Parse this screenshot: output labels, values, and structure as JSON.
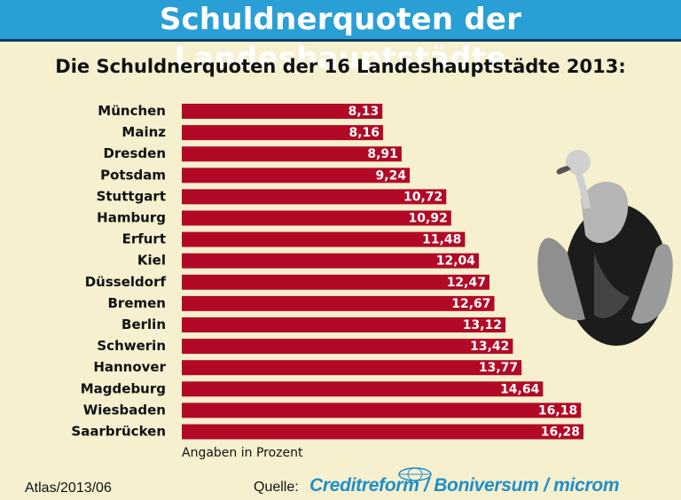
{
  "header": {
    "title": "Schuldnerquoten der Landeshauptstädte"
  },
  "footer": {
    "atlas": "Atlas/2013/06",
    "source_label": "Quelle:",
    "source_brand": "Creditreform / Boniversum / microm"
  },
  "colors": {
    "header_bg": "#2a9fd6",
    "bar": "#b20a26",
    "background": "#f6f0cf",
    "brand": "#1f8fc8"
  },
  "illustration": {
    "name": "vulture-icon"
  },
  "chart_data": {
    "type": "bar",
    "orientation": "horizontal",
    "title": "Die Schuldnerquoten der 16 Landeshauptstädte 2013:",
    "unit_note": "Angaben in Prozent",
    "categories": [
      "München",
      "Mainz",
      "Dresden",
      "Potsdam",
      "Stuttgart",
      "Hamburg",
      "Erfurt",
      "Kiel",
      "Düsseldorf",
      "Bremen",
      "Berlin",
      "Schwerin",
      "Hannover",
      "Magdeburg",
      "Wiesbaden",
      "Saarbrücken"
    ],
    "values": [
      8.13,
      8.16,
      8.91,
      9.24,
      10.72,
      10.92,
      11.48,
      12.04,
      12.47,
      12.67,
      13.12,
      13.42,
      13.77,
      14.64,
      16.18,
      16.28
    ],
    "value_labels": [
      "8,13",
      "8,16",
      "8,91",
      "9,24",
      "10,72",
      "10,92",
      "11,48",
      "12,04",
      "12,47",
      "12,67",
      "13,12",
      "13,42",
      "13,77",
      "14,64",
      "16,18",
      "16,28"
    ],
    "xlim": [
      0,
      16.28
    ],
    "grid": false,
    "legend": "none"
  }
}
